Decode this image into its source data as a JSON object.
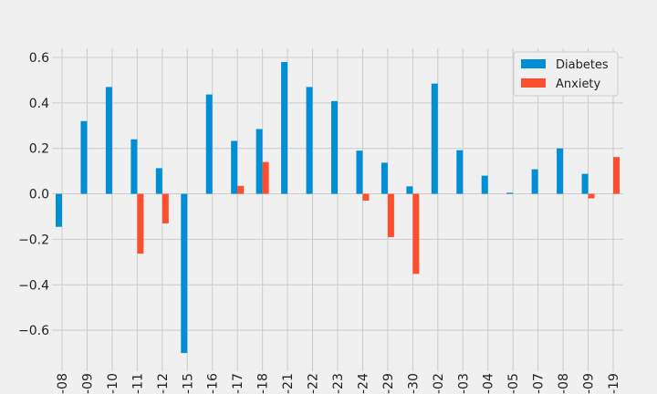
{
  "chart_data": {
    "type": "bar",
    "categories": [
      "-08",
      "-09",
      "-10",
      "-11",
      "-12",
      "-15",
      "-16",
      "-17",
      "-18",
      "-21",
      "-22",
      "-23",
      "-24",
      "-29",
      "-30",
      "-02",
      "-03",
      "-04",
      "-05",
      "-07",
      "-08",
      "-09",
      "-19"
    ],
    "series": [
      {
        "name": "Diabetes",
        "color": "#008fd5",
        "values": [
          -0.145,
          0.32,
          0.47,
          0.24,
          0.113,
          -0.7,
          0.437,
          0.233,
          0.285,
          0.58,
          0.47,
          0.408,
          0.19,
          0.137,
          0.033,
          0.485,
          0.192,
          0.08,
          0.005,
          0.108,
          0.2,
          0.088,
          null
        ]
      },
      {
        "name": "Anxiety",
        "color": "#fc4f30",
        "values": [
          null,
          null,
          null,
          -0.263,
          -0.13,
          null,
          null,
          0.035,
          0.14,
          null,
          null,
          null,
          -0.03,
          -0.19,
          -0.352,
          null,
          null,
          null,
          null,
          null,
          null,
          -0.02,
          0.162
        ]
      }
    ],
    "ylim": [
      -0.78,
      0.64
    ],
    "yticks": [
      -0.6,
      -0.4,
      -0.2,
      0.0,
      0.2,
      0.4,
      0.6
    ],
    "ytick_labels": [
      "−0.6",
      "−0.4",
      "−0.2",
      "0.0",
      "0.2",
      "0.4",
      "0.6"
    ],
    "grid": true,
    "legend_position": "top-right",
    "title": "",
    "xlabel": "",
    "ylabel": ""
  }
}
